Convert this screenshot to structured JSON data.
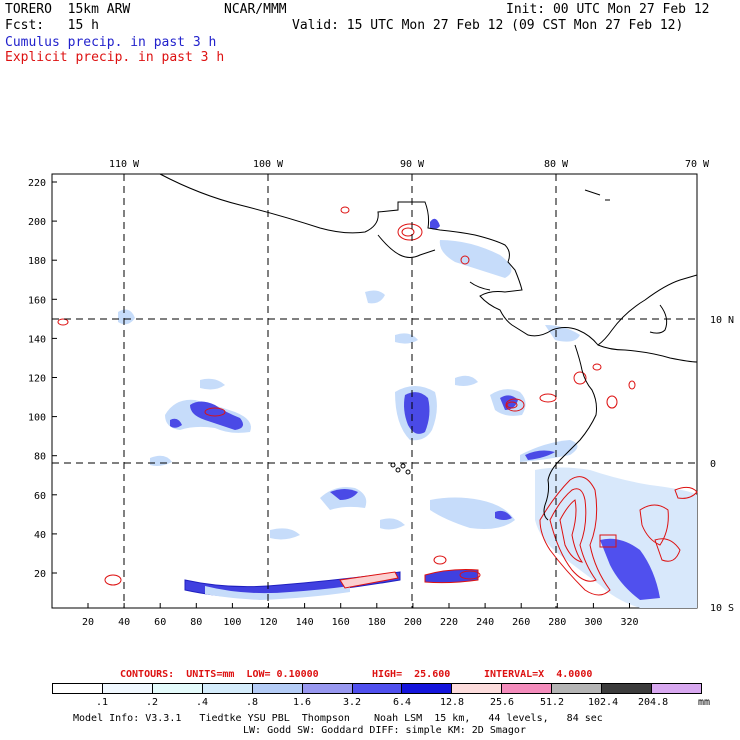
{
  "header": {
    "model": "TORERO  15km ARW",
    "org": "NCAR/MMM",
    "init": "Init: 00 UTC Mon 27 Feb 12",
    "fcst": "Fcst:   15 h",
    "valid": "Valid: 15 UTC Mon 27 Feb 12 (09 CST Mon 27 Feb 12)",
    "cumulus": "Cumulus precip. in past 3 h",
    "explicit": "Explicit precip. in past 3 h"
  },
  "map": {
    "lon_labels": [
      "110 W",
      "100 W",
      "90 W",
      "80 W",
      "70 W"
    ],
    "lat_labels": [
      "10 N",
      "0",
      "10 S"
    ],
    "y_ticks": [
      "220",
      "200",
      "180",
      "160",
      "140",
      "120",
      "100",
      "80",
      "60",
      "40",
      "20"
    ],
    "x_ticks": [
      "20",
      "40",
      "60",
      "80",
      "100",
      "120",
      "140",
      "160",
      "180",
      "200",
      "220",
      "240",
      "260",
      "280",
      "300",
      "320"
    ]
  },
  "contours": {
    "label": "CONTOURS:  UNITS=mm  LOW= 0.10000",
    "high": "HIGH=  25.600",
    "interval": "INTERVAL=X  4.0000"
  },
  "colorbar": {
    "labels": [
      ".1",
      ".2",
      ".4",
      ".8",
      "1.6",
      "3.2",
      "6.4",
      "12.8",
      "25.6",
      "51.2",
      "102.4",
      "204.8"
    ],
    "unit": "mm",
    "colors": [
      "#ffffff",
      "#f0f8ff",
      "#e4fbfb",
      "#d4ecfb",
      "#b4ccf6",
      "#9898f0",
      "#5050ee",
      "#1414dc",
      "#fcdcdc",
      "#f48cbc",
      "#b4b4b4",
      "#3c3c3c",
      "#d8a8f0"
    ]
  },
  "footer": {
    "line1": "Model Info: V3.3.1   Tiedtke YSU PBL  Thompson    Noah LSM  15 km,   44 levels,   84 sec",
    "line2": "LW: Godd SW: Goddard DIFF: simple KM: 2D Smagor"
  }
}
